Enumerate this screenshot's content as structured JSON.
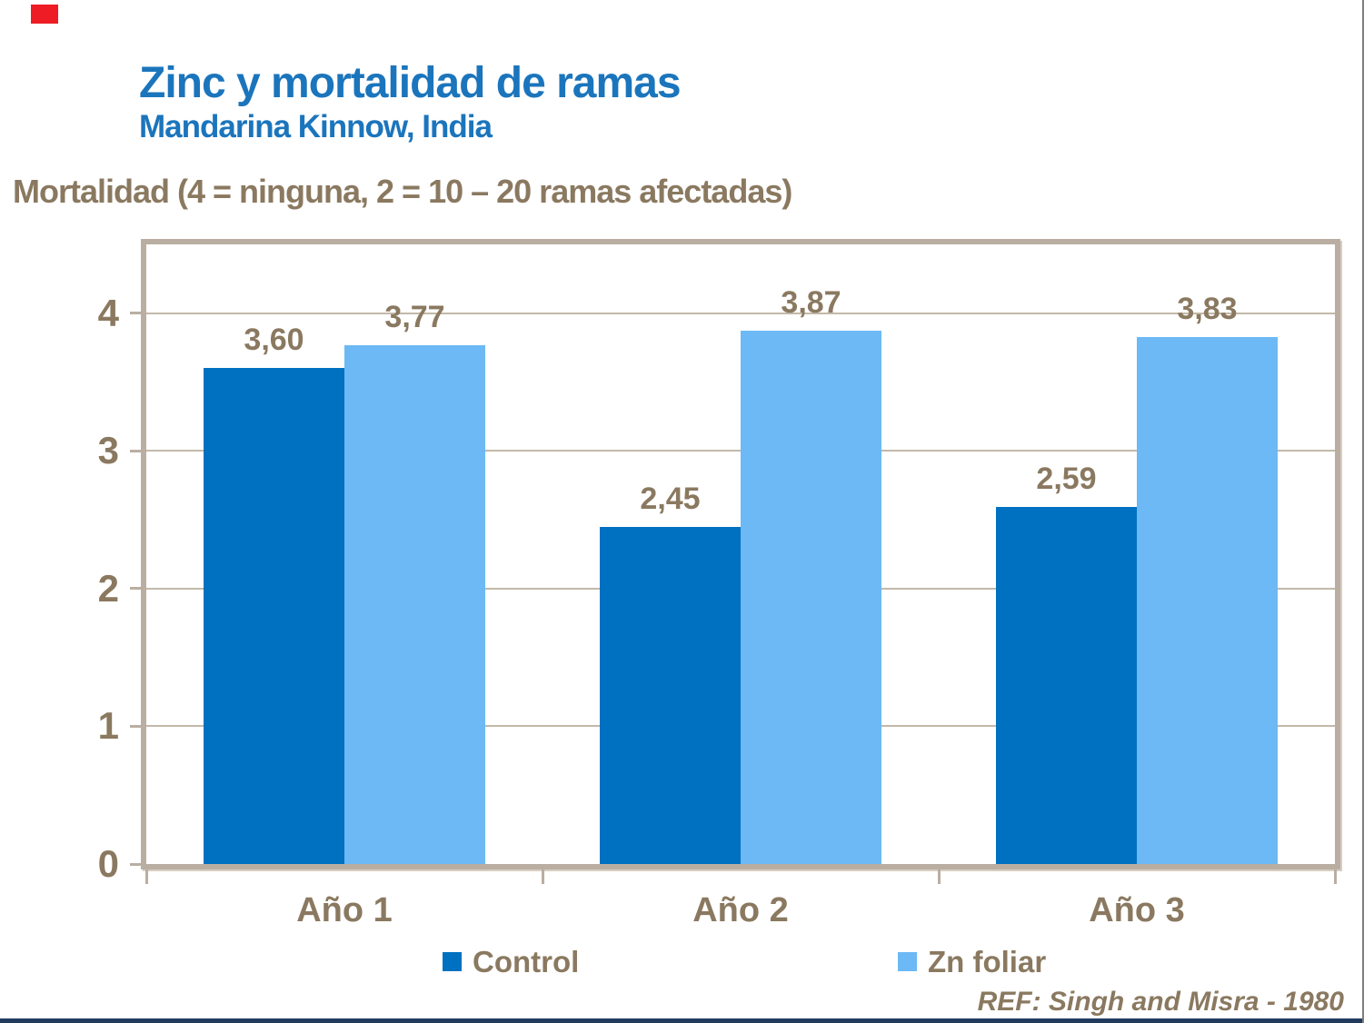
{
  "header": {
    "title": "Zinc y mortalidad de ramas",
    "subtitle": "Mandarina Kinnow, India"
  },
  "axis_title": "Mortalidad (4 = ninguna, 2 = 10 – 20 ramas afectadas)",
  "footer": {
    "ref": "REF: Singh and Misra - 1980"
  },
  "legend": {
    "items": [
      {
        "label": "Control",
        "color": "#0070c0"
      },
      {
        "label": "Zn foliar",
        "color": "#6cb9f5"
      }
    ]
  },
  "colors": {
    "title_blue": "#1b75bc",
    "text_brown": "#8a7960",
    "control_bar": "#0070c0",
    "zn_foliar_bar": "#6cb9f5",
    "frame_taupe": "#b9aea1",
    "gridline": "#c3b9a9",
    "bottom_strip_navy": "#233a5f",
    "red_marker": "#ee1c24"
  },
  "chart_data": {
    "type": "bar",
    "title": "Zinc y mortalidad de ramas",
    "subtitle": "Mandarina Kinnow, India",
    "ylabel": "Mortalidad (4 = ninguna, 2 = 10 – 20 ramas afectadas)",
    "categories": [
      "Año 1",
      "Año 2",
      "Año 3"
    ],
    "series": [
      {
        "name": "Control",
        "color": "#0070c0",
        "values": [
          3.6,
          2.45,
          2.59
        ],
        "labels": [
          "3,60",
          "2,45",
          "2,59"
        ]
      },
      {
        "name": "Zn foliar",
        "color": "#6cb9f5",
        "values": [
          3.77,
          3.87,
          3.83
        ],
        "labels": [
          "3,77",
          "3,87",
          "3,83"
        ]
      }
    ],
    "ylim": [
      0,
      4.5
    ],
    "yticks": [
      0,
      1,
      2,
      3,
      4
    ],
    "grid": true,
    "legend_position": "bottom",
    "source_ref": "REF: Singh and Misra - 1980"
  }
}
